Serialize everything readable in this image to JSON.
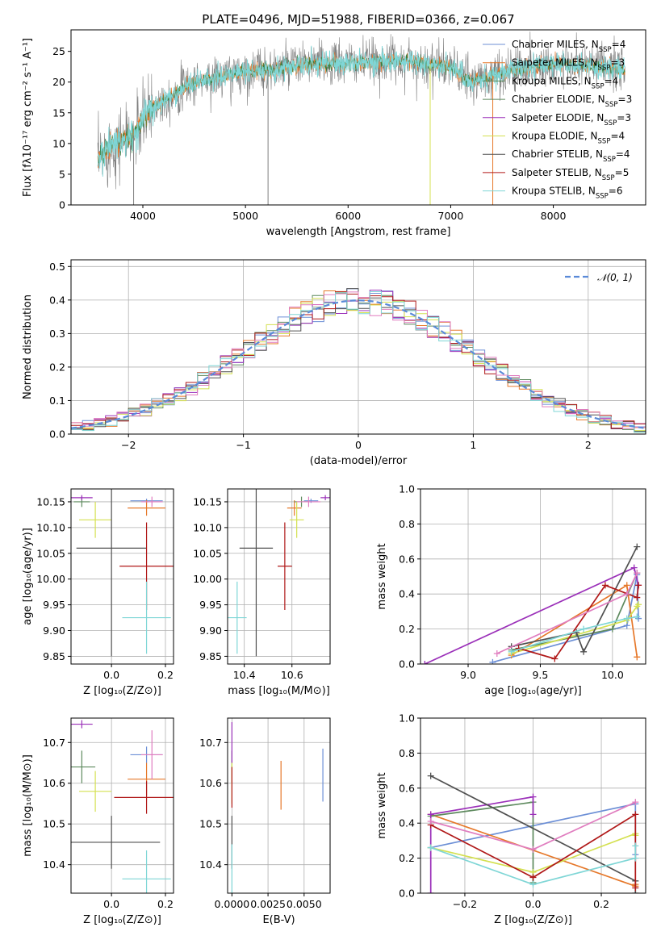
{
  "colors": {
    "spec_cm": "#6c8fd6",
    "spec_sm": "#e6782a",
    "spec_km": "#2e7d3a",
    "s1": "#6c8fd6",
    "s2": "#e6782a",
    "s3": "#5e8a5e",
    "s4": "#9b30b9",
    "s5": "#d4e050",
    "s6": "#505050",
    "s7": "#b01818",
    "s8": "#e07dbf",
    "s9": "#7fd6d6",
    "gauss": "#5a8ad8"
  },
  "chart_data": [
    {
      "id": "spectrum",
      "type": "line",
      "title": "PLATE=0496, MJD=51988, FIBERID=0366, z=0.067",
      "xlabel": "wavelength [Angstrom, rest frame]",
      "ylabel": "Flux [fλ10⁻¹⁷ erg cm⁻² s⁻¹ A⁻¹]",
      "xlim": [
        3300,
        8900
      ],
      "ylim": [
        0,
        28.5
      ],
      "xticks": [
        "4000",
        "5000",
        "6000",
        "7000",
        "8000"
      ],
      "yticks": [
        "0",
        "5",
        "10",
        "15",
        "20",
        "25"
      ],
      "legend": [
        "Chabrier MILES, N_SSP=4",
        "Salpeter MILES, N_SSP=3",
        "Kroupa MILES, N_SSP=4",
        "Chabrier ELODIE, N_SSP=3",
        "Salpeter ELODIE, N_SSP=3",
        "Kroupa ELODIE, N_SSP=4",
        "Chabrier STELIB, N_SSP=4",
        "Salpeter STELIB, N_SSP=5",
        "Kroupa STELIB, N_SSP=6"
      ],
      "legend_placement": "top-right",
      "grid": false,
      "continuum": [
        [
          3560,
          7
        ],
        [
          3700,
          10
        ],
        [
          3900,
          11
        ],
        [
          3970,
          13
        ],
        [
          4100,
          16
        ],
        [
          4300,
          18
        ],
        [
          4500,
          20
        ],
        [
          4800,
          21
        ],
        [
          5100,
          22
        ],
        [
          5300,
          22
        ],
        [
          5600,
          23
        ],
        [
          6000,
          23
        ],
        [
          6500,
          23.5
        ],
        [
          7000,
          22.5
        ],
        [
          7200,
          20
        ],
        [
          7600,
          22
        ],
        [
          8000,
          23
        ],
        [
          8500,
          22.5
        ],
        [
          8700,
          22
        ]
      ]
    },
    {
      "id": "residuals",
      "type": "step",
      "xlabel": "(data-model)/error",
      "ylabel": "Normed distribution",
      "xlim": [
        -2.5,
        2.5
      ],
      "ylim": [
        0,
        0.52
      ],
      "xticks": [
        "−2",
        "−1",
        "0",
        "1",
        "2"
      ],
      "yticks": [
        "0.0",
        "0.1",
        "0.2",
        "0.3",
        "0.4",
        "0.5"
      ],
      "legend": [
        "𝒩(0, 1)"
      ],
      "legend_placement": "top-right",
      "grid": true
    },
    {
      "id": "age_vs_Z",
      "type": "errorbar",
      "xlabel": "Z [log₁₀(Z/Z⊙)]",
      "ylabel": "age  [log₁₀(age/yr)]",
      "xlim": [
        -0.15,
        0.23
      ],
      "ylim": [
        9.835,
        10.175
      ],
      "xticks": [
        "0.0",
        "0.2"
      ],
      "yticks": [
        "9.85",
        "9.90",
        "9.95",
        "10.00",
        "10.05",
        "10.10",
        "10.15"
      ],
      "grid": true,
      "points": [
        {
          "s": 1,
          "x": 0.13,
          "y": 10.152,
          "xe": 0.06,
          "ye": 0.004
        },
        {
          "s": 2,
          "x": 0.13,
          "y": 10.138,
          "xe": 0.07,
          "ye": 0.015
        },
        {
          "s": 3,
          "x": -0.11,
          "y": 10.15,
          "xe": 0.03,
          "ye": 0.01
        },
        {
          "s": 4,
          "x": -0.11,
          "y": 10.158,
          "xe": 0.04,
          "ye": 0.005
        },
        {
          "s": 5,
          "x": -0.06,
          "y": 10.115,
          "xe": 0.06,
          "ye": 0.035
        },
        {
          "s": 6,
          "x": 0.0,
          "y": 10.06,
          "xe": 0.13,
          "ye": 0.21
        },
        {
          "s": 7,
          "x": 0.13,
          "y": 10.025,
          "xe": 0.1,
          "ye": 0.085
        },
        {
          "s": 8,
          "x": 0.15,
          "y": 10.15,
          "xe": 0.04,
          "ye": 0.01
        },
        {
          "s": 9,
          "x": 0.13,
          "y": 9.925,
          "xe": 0.09,
          "ye": 0.07
        }
      ]
    },
    {
      "id": "age_vs_mass",
      "type": "errorbar",
      "xlabel": "mass [log₁₀(M/M⊙)]",
      "xlim": [
        10.33,
        10.76
      ],
      "ylim": [
        9.835,
        10.175
      ],
      "xticks": [
        "10.4",
        "10.6"
      ],
      "yticks": [
        "9.85",
        "9.90",
        "9.95",
        "10.00",
        "10.05",
        "10.10",
        "10.15"
      ],
      "grid": true,
      "points": [
        {
          "s": 1,
          "x": 10.68,
          "y": 10.152,
          "xe": 0.03,
          "ye": 0.004
        },
        {
          "s": 2,
          "x": 10.61,
          "y": 10.138,
          "xe": 0.03,
          "ye": 0.015
        },
        {
          "s": 3,
          "x": 10.64,
          "y": 10.15,
          "xe": 0.03,
          "ye": 0.01
        },
        {
          "s": 4,
          "x": 10.74,
          "y": 10.158,
          "xe": 0.02,
          "ye": 0.005
        },
        {
          "s": 5,
          "x": 10.62,
          "y": 10.115,
          "xe": 0.03,
          "ye": 0.035
        },
        {
          "s": 6,
          "x": 10.45,
          "y": 10.06,
          "xe": 0.07,
          "ye": 0.21
        },
        {
          "s": 7,
          "x": 10.57,
          "y": 10.025,
          "xe": 0.03,
          "ye": 0.085
        },
        {
          "s": 8,
          "x": 10.67,
          "y": 10.15,
          "xe": 0.05,
          "ye": 0.01
        },
        {
          "s": 9,
          "x": 10.37,
          "y": 9.925,
          "xe": 0.04,
          "ye": 0.07
        }
      ]
    },
    {
      "id": "weight_vs_age",
      "type": "line",
      "xlabel": "age  [log₁₀(age/yr)]",
      "ylabel": "mass weight",
      "xlim": [
        8.67,
        10.23
      ],
      "ylim": [
        0,
        1.0
      ],
      "xticks": [
        "9.0",
        "9.5",
        "10.0"
      ],
      "yticks": [
        "0.0",
        "0.2",
        "0.4",
        "0.6",
        "0.8",
        "1.0"
      ],
      "grid": true,
      "series": [
        {
          "s": 1,
          "pts": [
            [
              9.17,
              0.01
            ],
            [
              10.1,
              0.22
            ],
            [
              10.17,
              0.51
            ],
            [
              10.18,
              0.26
            ]
          ]
        },
        {
          "s": 2,
          "pts": [
            [
              9.3,
              0.05
            ],
            [
              10.1,
              0.45
            ],
            [
              10.17,
              0.04
            ]
          ]
        },
        {
          "s": 3,
          "pts": [
            [
              9.3,
              0.08
            ],
            [
              10.0,
              0.2
            ],
            [
              10.17,
              0.52
            ]
          ]
        },
        {
          "s": 4,
          "pts": [
            [
              8.7,
              0.0
            ],
            [
              10.15,
              0.55
            ],
            [
              10.18,
              0.45
            ]
          ]
        },
        {
          "s": 5,
          "pts": [
            [
              9.3,
              0.06
            ],
            [
              10.1,
              0.25
            ],
            [
              10.17,
              0.33
            ],
            [
              10.18,
              0.34
            ]
          ]
        },
        {
          "s": 6,
          "pts": [
            [
              9.3,
              0.1
            ],
            [
              9.75,
              0.18
            ],
            [
              9.8,
              0.07
            ],
            [
              10.17,
              0.67
            ]
          ]
        },
        {
          "s": 7,
          "pts": [
            [
              9.35,
              0.09
            ],
            [
              9.6,
              0.03
            ],
            [
              9.95,
              0.45
            ],
            [
              10.17,
              0.38
            ],
            [
              10.18,
              0.45
            ]
          ]
        },
        {
          "s": 8,
          "pts": [
            [
              9.2,
              0.06
            ],
            [
              10.1,
              0.4
            ],
            [
              10.17,
              0.52
            ]
          ]
        },
        {
          "s": 9,
          "pts": [
            [
              9.3,
              0.07
            ],
            [
              9.8,
              0.2
            ],
            [
              10.1,
              0.26
            ],
            [
              10.17,
              0.27
            ]
          ]
        }
      ]
    },
    {
      "id": "mass_vs_Z",
      "type": "errorbar",
      "xlabel": "Z [log₁₀(Z/Z⊙)]",
      "ylabel": "mass [log₁₀(M/M⊙)]",
      "xlim": [
        -0.15,
        0.23
      ],
      "ylim": [
        10.33,
        10.76
      ],
      "xticks": [
        "0.0",
        "0.2"
      ],
      "yticks": [
        "10.4",
        "10.5",
        "10.6",
        "10.7"
      ],
      "grid": true,
      "points": [
        {
          "s": 1,
          "x": 0.13,
          "y": 10.67,
          "xe": 0.06,
          "ye": 0.02
        },
        {
          "s": 2,
          "x": 0.13,
          "y": 10.61,
          "xe": 0.07,
          "ye": 0.04
        },
        {
          "s": 3,
          "x": -0.11,
          "y": 10.64,
          "xe": 0.05,
          "ye": 0.04
        },
        {
          "s": 4,
          "x": -0.11,
          "y": 10.745,
          "xe": 0.04,
          "ye": 0.01
        },
        {
          "s": 5,
          "x": -0.06,
          "y": 10.58,
          "xe": 0.06,
          "ye": 0.05
        },
        {
          "s": 6,
          "x": 0.0,
          "y": 10.455,
          "xe": 0.18,
          "ye": 0.065
        },
        {
          "s": 7,
          "x": 0.13,
          "y": 10.565,
          "xe": 0.12,
          "ye": 0.04
        },
        {
          "s": 8,
          "x": 0.15,
          "y": 10.67,
          "xe": 0.04,
          "ye": 0.06
        },
        {
          "s": 9,
          "x": 0.13,
          "y": 10.365,
          "xe": 0.09,
          "ye": 0.07
        }
      ]
    },
    {
      "id": "mass_vs_ebv",
      "type": "errorbar",
      "xlabel": "E(B-V)",
      "xlim": [
        -0.0003,
        0.0068
      ],
      "ylim": [
        10.33,
        10.76
      ],
      "xticks": [
        "0.0000",
        "0.0025",
        "0.0050"
      ],
      "yticks": [
        "10.4",
        "10.5",
        "10.6",
        "10.7"
      ],
      "grid": true,
      "points": [
        {
          "s": 1,
          "x": 0.0063,
          "y": 10.62,
          "xe": 0.0,
          "ye": 0.065
        },
        {
          "s": 2,
          "x": 0.0034,
          "y": 10.595,
          "xe": 0.0,
          "ye": 0.06
        },
        {
          "s": 3,
          "x": 0.0,
          "y": 10.64,
          "xe": 0.0,
          "ye": 0.04
        },
        {
          "s": 4,
          "x": 0.0,
          "y": 10.7,
          "xe": 0.0,
          "ye": 0.05
        },
        {
          "s": 5,
          "x": 0.0,
          "y": 10.6,
          "xe": 0.0,
          "ye": 0.05
        },
        {
          "s": 6,
          "x": 0.0,
          "y": 10.455,
          "xe": 0.0,
          "ye": 0.065
        },
        {
          "s": 7,
          "x": 0.0,
          "y": 10.59,
          "xe": 0.0,
          "ye": 0.05
        },
        {
          "s": 9,
          "x": 0.0,
          "y": 10.38,
          "xe": 0.0,
          "ye": 0.07
        }
      ]
    },
    {
      "id": "weight_vs_Z",
      "type": "line",
      "xlabel": "Z [log₁₀(Z/Z⊙)]",
      "ylabel": "mass weight",
      "xlim": [
        -0.33,
        0.33
      ],
      "ylim": [
        0,
        1.0
      ],
      "xticks": [
        "−0.2",
        "0.0",
        "0.2"
      ],
      "yticks": [
        "0.0",
        "0.2",
        "0.4",
        "0.6",
        "0.8",
        "1.0"
      ],
      "grid": true,
      "series": [
        {
          "s": 1,
          "pts": [
            [
              -0.3,
              0.26
            ],
            [
              0.3,
              0.51
            ],
            [
              0.3,
              0.22
            ]
          ]
        },
        {
          "s": 2,
          "pts": [
            [
              -0.3,
              0.45
            ],
            [
              0.3,
              0.04
            ],
            [
              0.3,
              0.05
            ]
          ]
        },
        {
          "s": 3,
          "pts": [
            [
              -0.3,
              0.44
            ],
            [
              0.0,
              0.52
            ],
            [
              0.0,
              0.06
            ]
          ]
        },
        {
          "s": 4,
          "pts": [
            [
              -0.3,
              0.0
            ],
            [
              -0.3,
              0.45
            ],
            [
              0.0,
              0.55
            ],
            [
              0.0,
              0.45
            ]
          ]
        },
        {
          "s": 5,
          "pts": [
            [
              -0.3,
              0.26
            ],
            [
              0.0,
              0.12
            ],
            [
              0.3,
              0.34
            ],
            [
              0.3,
              0.33
            ]
          ]
        },
        {
          "s": 6,
          "pts": [
            [
              -0.3,
              0.67
            ],
            [
              0.3,
              0.07
            ],
            [
              0.3,
              0.0
            ]
          ]
        },
        {
          "s": 7,
          "pts": [
            [
              -0.3,
              0.39
            ],
            [
              0.0,
              0.09
            ],
            [
              0.3,
              0.45
            ],
            [
              0.3,
              0.03
            ]
          ]
        },
        {
          "s": 8,
          "pts": [
            [
              -0.3,
              0.41
            ],
            [
              0.0,
              0.25
            ],
            [
              0.3,
              0.52
            ]
          ]
        },
        {
          "s": 9,
          "pts": [
            [
              -0.3,
              0.26
            ],
            [
              0.0,
              0.05
            ],
            [
              0.3,
              0.2
            ],
            [
              0.3,
              0.27
            ]
          ]
        }
      ]
    }
  ]
}
